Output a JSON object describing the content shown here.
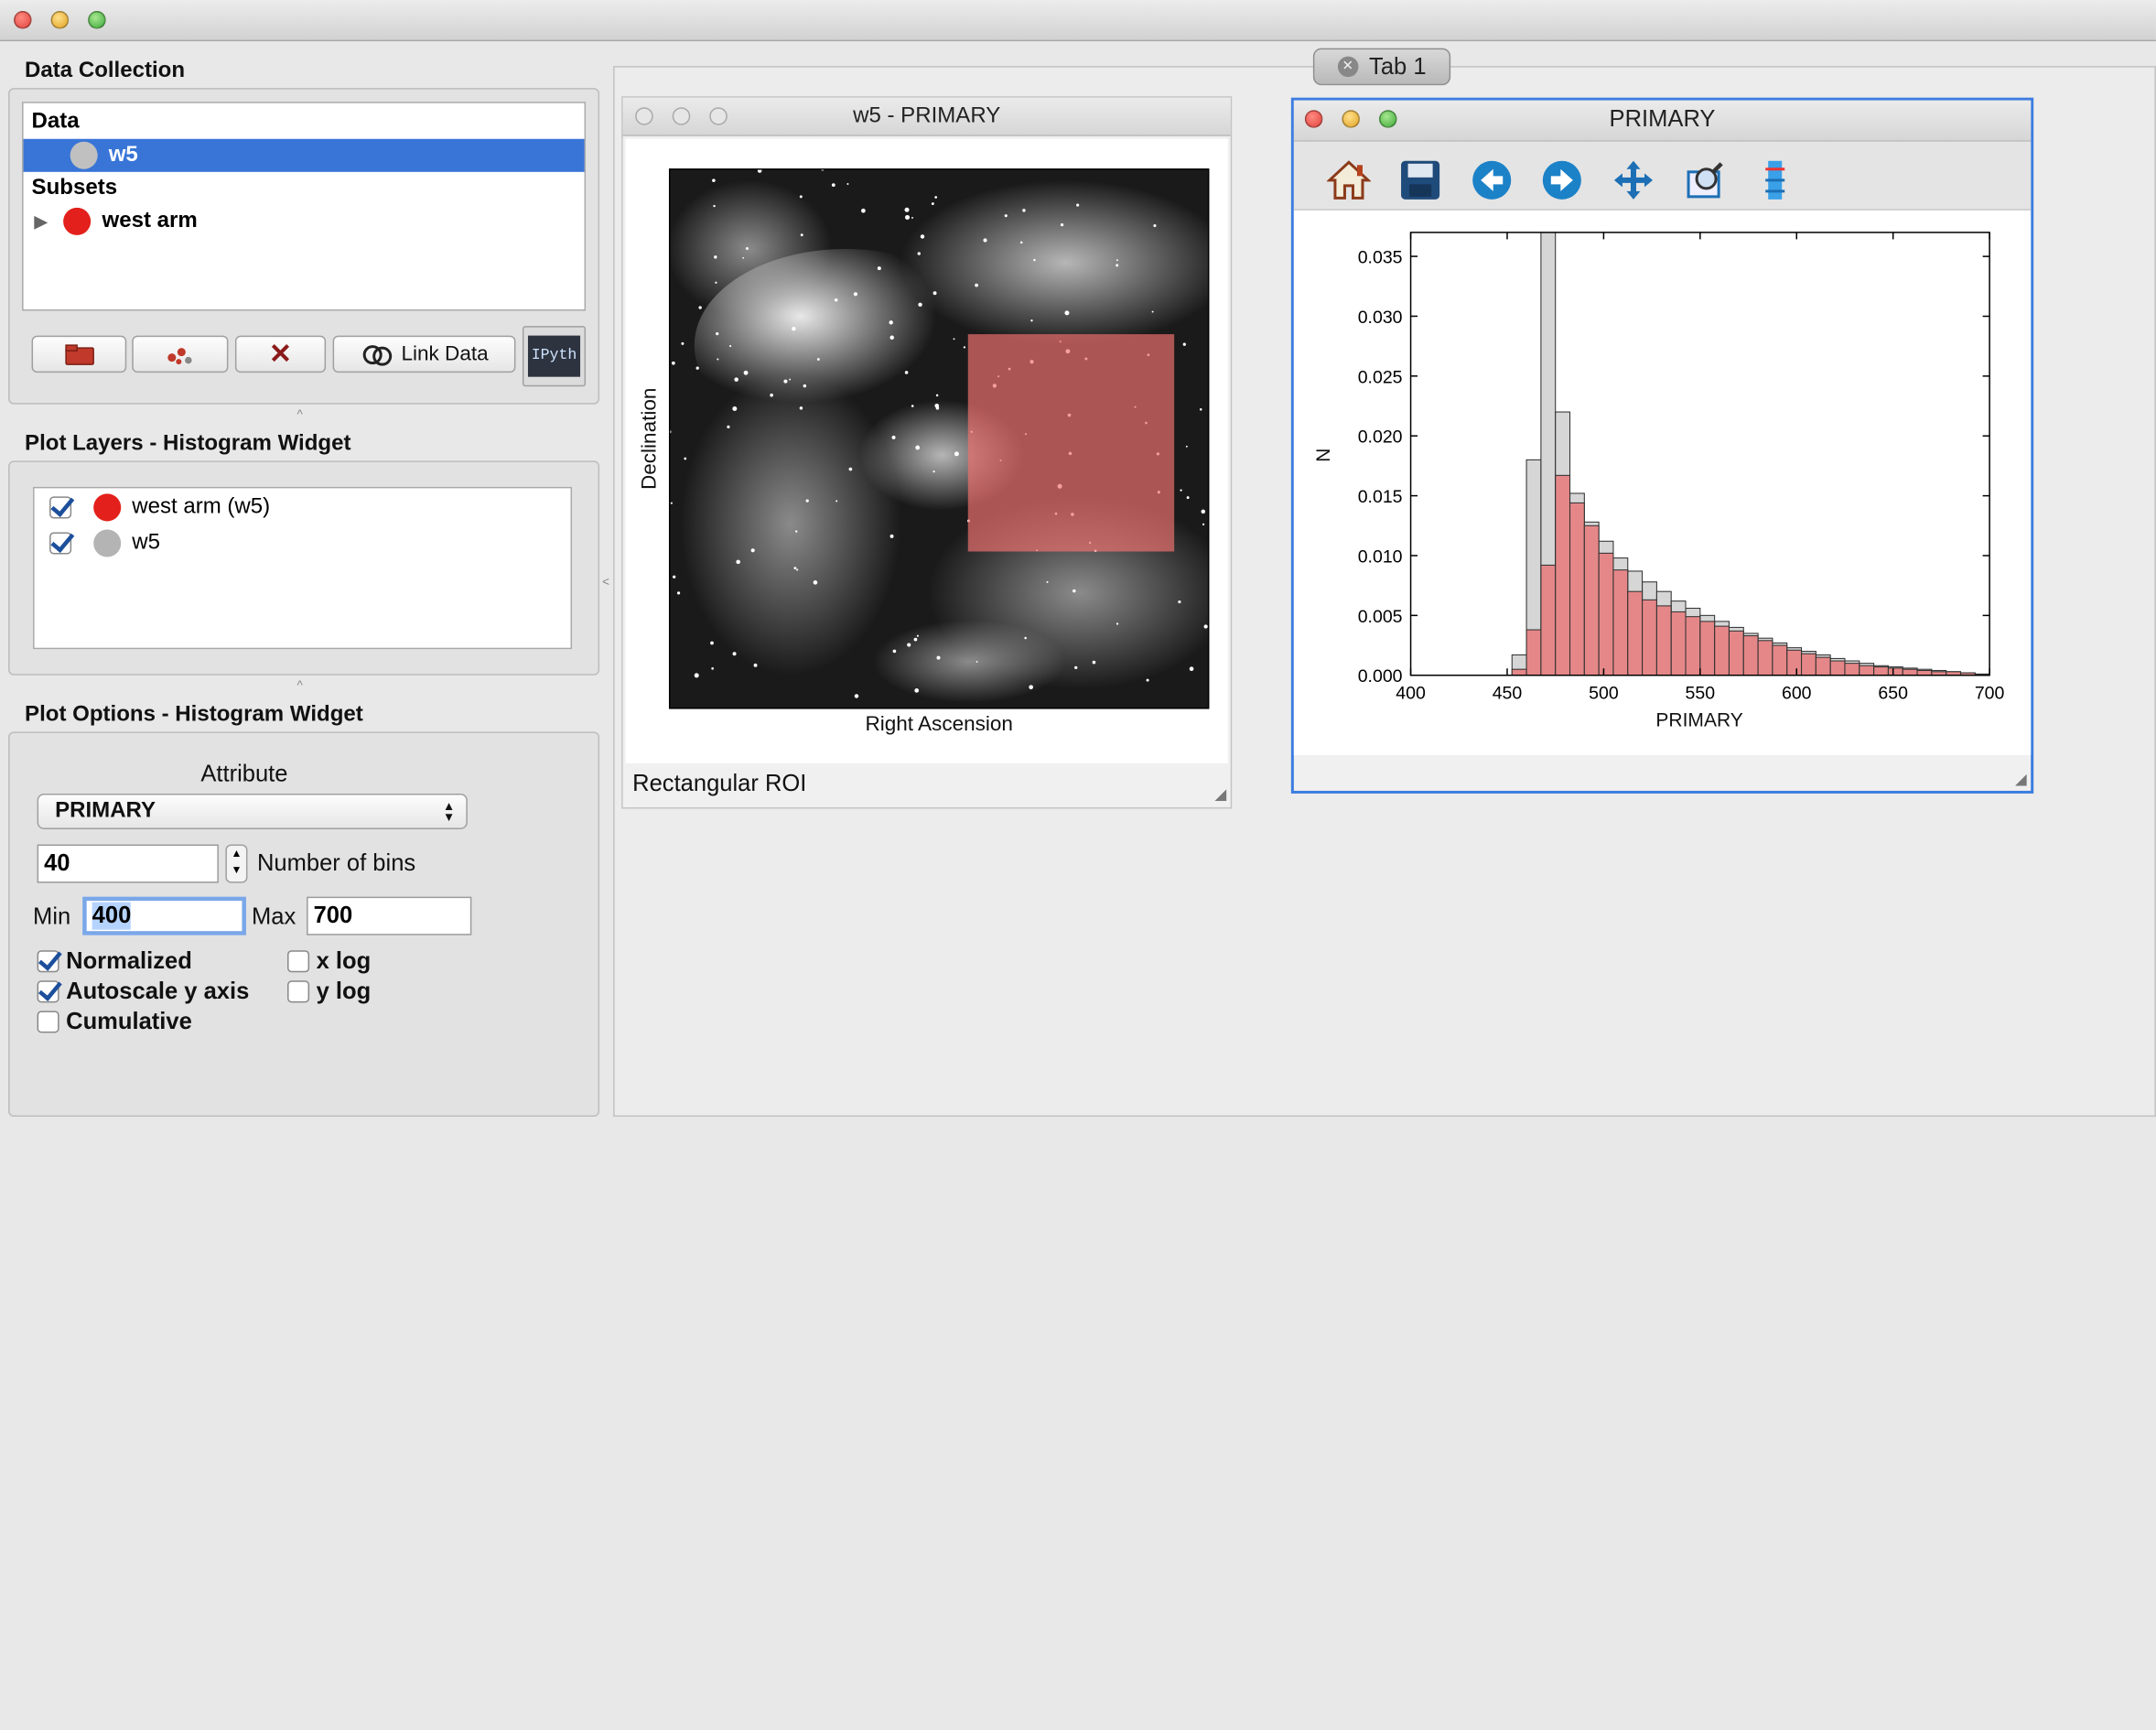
{
  "data_collection": {
    "title": "Data Collection",
    "data_header": "Data",
    "data_item": "w5",
    "subsets_header": "Subsets",
    "subset_item": "west arm",
    "link_data_label": "Link Data",
    "ipython_label": "IPyth"
  },
  "plot_layers": {
    "title": "Plot Layers - Histogram Widget",
    "layers": [
      {
        "label": "west arm (w5)",
        "color": "#e3201b"
      },
      {
        "label": "w5",
        "color": "#b4b4b4"
      }
    ]
  },
  "plot_options": {
    "title": "Plot Options - Histogram Widget",
    "attribute_label": "Attribute",
    "attribute_value": "PRIMARY",
    "bins_value": "40",
    "bins_label": "Number of bins",
    "min_label": "Min",
    "min_value": "400",
    "max_label": "Max",
    "max_value": "700",
    "normalized_label": "Normalized",
    "autoscale_label": "Autoscale y axis",
    "cumulative_label": "Cumulative",
    "xlog_label": "x log",
    "ylog_label": "y log"
  },
  "tab": {
    "label": "Tab 1"
  },
  "image_window": {
    "title": "w5 - PRIMARY",
    "xlabel": "Right Ascension",
    "ylabel": "Declination",
    "status": "Rectangular ROI"
  },
  "hist_window": {
    "title": "PRIMARY"
  },
  "chart_data": {
    "type": "bar",
    "xlabel": "PRIMARY",
    "ylabel": "N",
    "xlim": [
      400,
      700
    ],
    "ylim": [
      0,
      0.037
    ],
    "xticks": [
      "400",
      "450",
      "500",
      "550",
      "600",
      "650",
      "700"
    ],
    "yticks": [
      "0.000",
      "0.005",
      "0.010",
      "0.015",
      "0.020",
      "0.025",
      "0.030",
      "0.035"
    ],
    "bin_edges_start": 400,
    "bin_width": 7.5,
    "series": [
      {
        "color": "#c8c8c8",
        "values": [
          0,
          0,
          0,
          0,
          0,
          0,
          0,
          0.0017,
          0.018,
          0.0372,
          0.022,
          0.0152,
          0.0128,
          0.0112,
          0.0098,
          0.0087,
          0.0078,
          0.007,
          0.0062,
          0.0056,
          0.005,
          0.0045,
          0.004,
          0.0035,
          0.0031,
          0.0027,
          0.0023,
          0.002,
          0.0017,
          0.0014,
          0.0012,
          0.001,
          0.0008,
          0.0007,
          0.0006,
          0.0005,
          0.0004,
          0.0003,
          0.0002,
          0.0001
        ]
      },
      {
        "color": "#e8797a",
        "values": [
          0,
          0,
          0,
          0,
          0,
          0,
          0,
          0.0005,
          0.0038,
          0.0092,
          0.0167,
          0.0144,
          0.0125,
          0.0102,
          0.0088,
          0.007,
          0.0063,
          0.0058,
          0.0053,
          0.0049,
          0.0045,
          0.0041,
          0.0037,
          0.0033,
          0.0029,
          0.0025,
          0.0021,
          0.0018,
          0.0015,
          0.0012,
          0.001,
          0.0008,
          0.0007,
          0.0006,
          0.0005,
          0.0004,
          0.0003,
          0.0003,
          0.0002,
          0.0001
        ]
      }
    ]
  }
}
